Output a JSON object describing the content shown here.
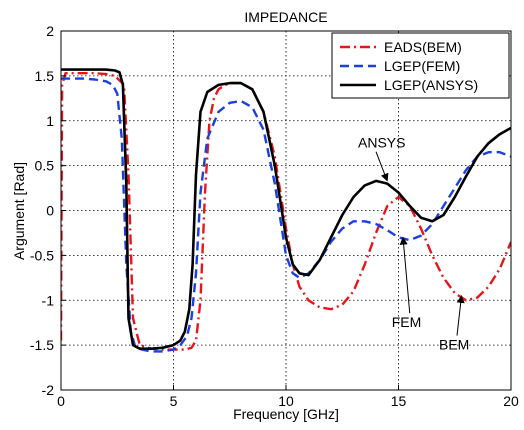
{
  "chart_data": {
    "type": "line",
    "title": "IMPEDANCE",
    "xlabel": "Frequency [GHz]",
    "ylabel": "Argument [Rad]",
    "xlim": [
      0,
      20
    ],
    "ylim": [
      -2,
      2
    ],
    "xticks": [
      0,
      5,
      10,
      15,
      20
    ],
    "yticks": [
      -2,
      -1.5,
      -1,
      -0.5,
      0,
      0.5,
      1,
      1.5,
      2
    ],
    "grid": true,
    "legend_position": "top-right",
    "series": [
      {
        "name": "EADS(BEM)",
        "color": "#e8151b",
        "style": "dashdot",
        "x": [
          0,
          0.05,
          0.2,
          0.6,
          1,
          1.5,
          2,
          2.4,
          2.8,
          3.0,
          3.2,
          3.5,
          4,
          4.5,
          5,
          5.5,
          5.8,
          6.0,
          6.2,
          6.4,
          6.6,
          6.8,
          7.0,
          7.3,
          7.6,
          8,
          8.5,
          9,
          9.5,
          10,
          10.3,
          10.6,
          11,
          11.5,
          12,
          12.5,
          13,
          13.5,
          14,
          14.5,
          15,
          15.5,
          16,
          16.5,
          17,
          17.5,
          18,
          18.5,
          19,
          19.5,
          20
        ],
        "y": [
          -1.45,
          1.4,
          1.53,
          1.53,
          1.53,
          1.53,
          1.52,
          1.5,
          1.4,
          0.4,
          -1.2,
          -1.5,
          -1.54,
          -1.55,
          -1.55,
          -1.55,
          -1.53,
          -1.45,
          -1.0,
          0.2,
          1.0,
          1.25,
          1.35,
          1.4,
          1.42,
          1.42,
          1.35,
          1.1,
          0.6,
          -0.2,
          -0.6,
          -0.85,
          -1.0,
          -1.08,
          -1.1,
          -1.05,
          -0.9,
          -0.6,
          -0.25,
          0.05,
          0.15,
          0.05,
          -0.2,
          -0.5,
          -0.75,
          -0.92,
          -1.0,
          -0.97,
          -0.85,
          -0.65,
          -0.35
        ]
      },
      {
        "name": "LGEP(FEM)",
        "color": "#1c3fe0",
        "style": "dashed",
        "x": [
          0,
          0.3,
          1,
          1.5,
          2,
          2.3,
          2.5,
          2.7,
          2.9,
          3.1,
          3.3,
          3.6,
          4,
          4.5,
          5,
          5.3,
          5.6,
          5.8,
          6.0,
          6.2,
          6.5,
          7,
          7.5,
          8,
          8.5,
          9,
          9.5,
          10,
          10.3,
          10.6,
          11,
          11.5,
          12,
          12.5,
          13,
          13.5,
          14,
          14.5,
          15,
          15.5,
          16,
          16.5,
          17,
          17.5,
          18,
          18.5,
          19,
          19.5,
          20
        ],
        "y": [
          1.47,
          1.47,
          1.47,
          1.46,
          1.44,
          1.4,
          1.3,
          0.8,
          -0.6,
          -1.35,
          -1.52,
          -1.55,
          -1.57,
          -1.57,
          -1.55,
          -1.5,
          -1.4,
          -1.2,
          -0.7,
          0.2,
          0.8,
          1.1,
          1.2,
          1.22,
          1.15,
          0.9,
          0.3,
          -0.5,
          -0.7,
          -0.75,
          -0.7,
          -0.55,
          -0.35,
          -0.2,
          -0.12,
          -0.12,
          -0.15,
          -0.22,
          -0.3,
          -0.33,
          -0.28,
          -0.15,
          0.05,
          0.25,
          0.45,
          0.6,
          0.65,
          0.65,
          0.6
        ]
      },
      {
        "name": "LGEP(ANSYS)",
        "color": "#000000",
        "style": "solid",
        "x": [
          0,
          0.5,
          1,
          1.5,
          2,
          2.4,
          2.6,
          2.75,
          2.9,
          3.0,
          3.2,
          3.5,
          4,
          4.5,
          5,
          5.3,
          5.5,
          5.7,
          5.85,
          6.0,
          6.2,
          6.5,
          7,
          7.5,
          8,
          8.5,
          9,
          9.5,
          10,
          10.3,
          10.6,
          11,
          11.5,
          12,
          12.5,
          13,
          13.5,
          14,
          14.5,
          15,
          15.5,
          16,
          16.5,
          17,
          17.5,
          18,
          18.5,
          19,
          19.5,
          20
        ],
        "y": [
          1.57,
          1.57,
          1.57,
          1.57,
          1.57,
          1.56,
          1.54,
          1.4,
          0.3,
          -1.2,
          -1.5,
          -1.54,
          -1.54,
          -1.53,
          -1.5,
          -1.45,
          -1.35,
          -1.1,
          -0.6,
          0.4,
          1.1,
          1.32,
          1.4,
          1.42,
          1.42,
          1.35,
          1.1,
          0.5,
          -0.3,
          -0.6,
          -0.7,
          -0.72,
          -0.55,
          -0.3,
          -0.05,
          0.15,
          0.28,
          0.33,
          0.3,
          0.2,
          0.05,
          -0.08,
          -0.12,
          -0.05,
          0.15,
          0.38,
          0.6,
          0.75,
          0.85,
          0.92
        ]
      }
    ],
    "annotations": [
      {
        "text": "ANSYS",
        "x": 13.2,
        "y": 0.7,
        "arrow_to": [
          14.5,
          0.33
        ]
      },
      {
        "text": "FEM",
        "x": 14.7,
        "y": -1.3,
        "arrow_to": [
          15.2,
          -0.3
        ]
      },
      {
        "text": "BEM",
        "x": 16.8,
        "y": -1.55,
        "arrow_to": [
          17.8,
          -0.95
        ]
      }
    ]
  }
}
